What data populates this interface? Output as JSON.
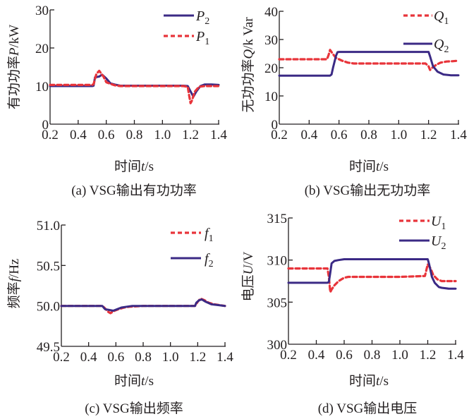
{
  "chart_data": [
    {
      "id": "a",
      "type": "line",
      "caption": "(a) VSG输出有功功率",
      "xlabel_cn": "时间",
      "xlabel_var": "t",
      "xlabel_unit": "/s",
      "ylabel_cn": "有功功率",
      "ylabel_var": "P",
      "ylabel_unit": "/kW",
      "xlim": [
        0.2,
        1.4
      ],
      "ylim": [
        0,
        30
      ],
      "xticks": [
        0.2,
        0.4,
        0.6,
        0.8,
        1.0,
        1.2,
        1.4
      ],
      "xtick_labels": [
        "0.2",
        "0.4",
        "0.6",
        "0.8",
        "1.0",
        "1.2",
        "1.4"
      ],
      "yticks": [
        0,
        10,
        20,
        30
      ],
      "ytick_labels": [
        "0",
        "10",
        "20",
        "30"
      ],
      "legend_position": "top-right",
      "series": [
        {
          "name": "P",
          "sub": "2",
          "style": "solid",
          "color": "#3b2a85",
          "x": [
            0.2,
            0.5,
            0.51,
            0.52,
            0.55,
            0.57,
            0.6,
            0.63,
            0.66,
            0.7,
            0.8,
            1.0,
            1.15,
            1.18,
            1.2,
            1.22,
            1.24,
            1.27,
            1.3,
            1.35,
            1.4
          ],
          "y": [
            10,
            10,
            10.1,
            12.3,
            12.5,
            13.0,
            12.0,
            10.7,
            10.4,
            10.1,
            10.1,
            10.1,
            10.1,
            10.0,
            8.6,
            7.2,
            8.5,
            10.0,
            10.4,
            10.4,
            10.3
          ]
        },
        {
          "name": "P",
          "sub": "1",
          "style": "dashed",
          "color": "#e8343a",
          "x": [
            0.2,
            0.5,
            0.51,
            0.53,
            0.55,
            0.58,
            0.6,
            0.63,
            0.66,
            0.7,
            0.8,
            1.0,
            1.15,
            1.18,
            1.19,
            1.2,
            1.21,
            1.23,
            1.26,
            1.3,
            1.35,
            1.4
          ],
          "y": [
            10.3,
            10.3,
            10.5,
            13.2,
            14.0,
            12.5,
            11.0,
            10.6,
            10.2,
            10.0,
            10.0,
            10.0,
            10.0,
            9.8,
            7.5,
            5.5,
            6.2,
            8.5,
            9.8,
            10.0,
            10.0,
            10.0
          ]
        }
      ]
    },
    {
      "id": "b",
      "type": "line",
      "caption": "(b) VSG输出无功功率",
      "xlabel_cn": "时间",
      "xlabel_var": "t",
      "xlabel_unit": "/s",
      "ylabel_cn": "无功功率",
      "ylabel_var": "Q",
      "ylabel_unit": "/k Var",
      "xlim": [
        0.2,
        1.4
      ],
      "ylim": [
        0,
        40
      ],
      "xticks": [
        0.2,
        0.4,
        0.6,
        0.8,
        1.0,
        1.2,
        1.4
      ],
      "xtick_labels": [
        "0.2",
        "0.4",
        "0.6",
        "0.8",
        "1.0",
        "1.2",
        "1.4"
      ],
      "yticks": [
        0,
        10,
        20,
        30,
        40
      ],
      "ytick_labels": [
        "0",
        "10",
        "20",
        "30",
        "40"
      ],
      "legend_position": "top-right",
      "series": [
        {
          "name": "Q",
          "sub": "1",
          "style": "dashed",
          "color": "#e8343a",
          "x": [
            0.2,
            0.52,
            0.53,
            0.54,
            0.56,
            0.58,
            0.62,
            0.66,
            0.7,
            0.8,
            1.0,
            1.18,
            1.2,
            1.21,
            1.22,
            1.25,
            1.28,
            1.32,
            1.36,
            1.4
          ],
          "y": [
            23,
            23,
            24.5,
            26.3,
            24.8,
            23.5,
            22.5,
            21.8,
            21.5,
            21.5,
            21.5,
            21.5,
            20.5,
            19.2,
            19.8,
            21.0,
            21.8,
            22.2,
            22.3,
            22.5
          ]
        },
        {
          "name": "Q",
          "sub": "2",
          "style": "solid",
          "color": "#3b2a85",
          "x": [
            0.2,
            0.54,
            0.55,
            0.56,
            0.58,
            0.59,
            0.6,
            0.8,
            1.0,
            1.2,
            1.21,
            1.23,
            1.26,
            1.3,
            1.35,
            1.4
          ],
          "y": [
            17.2,
            17.2,
            17.6,
            20.0,
            24.2,
            25.5,
            25.6,
            25.6,
            25.6,
            25.6,
            24.0,
            20.5,
            18.6,
            17.6,
            17.3,
            17.3
          ]
        }
      ]
    },
    {
      "id": "c",
      "type": "line",
      "caption": "(c) VSG输出频率",
      "xlabel_cn": "时间",
      "xlabel_var": "t",
      "xlabel_unit": "/s",
      "ylabel_cn": "频率",
      "ylabel_var": "f",
      "ylabel_unit": "/Hz",
      "xlim": [
        0.2,
        1.4
      ],
      "ylim": [
        49.5,
        51.0
      ],
      "xticks": [
        0.2,
        0.4,
        0.6,
        0.8,
        1.0,
        1.2,
        1.4
      ],
      "xtick_labels": [
        "0.2",
        "0.4",
        "0.6",
        "0.8",
        "1.0",
        "1.2",
        "1.4"
      ],
      "yticks": [
        49.5,
        50.0,
        50.5,
        51.0
      ],
      "ytick_labels": [
        "49.5",
        "50.0",
        "50.5",
        "51.0"
      ],
      "legend_position": "top-right",
      "series": [
        {
          "name": "f",
          "sub": "1",
          "style": "dashed",
          "color": "#e8343a",
          "x": [
            0.2,
            0.5,
            0.52,
            0.54,
            0.56,
            0.59,
            0.62,
            0.66,
            0.7,
            0.8,
            1.0,
            1.18,
            1.2,
            1.22,
            1.25,
            1.28,
            1.32,
            1.36,
            1.4
          ],
          "y": [
            50.0,
            50.0,
            49.97,
            49.93,
            49.91,
            49.94,
            49.96,
            49.98,
            49.99,
            50.0,
            50.0,
            50.0,
            50.05,
            50.09,
            50.07,
            50.04,
            50.02,
            50.01,
            50.0
          ]
        },
        {
          "name": "f",
          "sub": "2",
          "style": "solid",
          "color": "#3b2a85",
          "x": [
            0.2,
            0.5,
            0.52,
            0.55,
            0.58,
            0.61,
            0.64,
            0.68,
            0.72,
            0.8,
            1.0,
            1.18,
            1.19,
            1.21,
            1.23,
            1.26,
            1.3,
            1.35,
            1.4
          ],
          "y": [
            50.0,
            50.0,
            49.96,
            49.95,
            49.94,
            49.96,
            49.98,
            49.99,
            50.0,
            50.0,
            50.0,
            50.0,
            50.04,
            50.07,
            50.08,
            50.05,
            50.02,
            50.01,
            50.0
          ]
        }
      ]
    },
    {
      "id": "d",
      "type": "line",
      "caption": "(d) VSG输出电压",
      "xlabel_cn": "时间",
      "xlabel_var": "t",
      "xlabel_unit": "/s",
      "ylabel_cn": "电压",
      "ylabel_var": "U",
      "ylabel_unit": "/V",
      "xlim": [
        0.2,
        1.4
      ],
      "ylim": [
        300,
        315
      ],
      "xticks": [
        0.2,
        0.4,
        0.6,
        0.8,
        1.0,
        1.2,
        1.4
      ],
      "xtick_labels": [
        "0.2",
        "0.4",
        "0.6",
        "0.8",
        "1.0",
        "1.2",
        "1.4"
      ],
      "yticks": [
        300,
        305,
        310,
        315
      ],
      "ytick_labels": [
        "300",
        "305",
        "310",
        "315"
      ],
      "legend_position": "top-right",
      "series": [
        {
          "name": "U",
          "sub": "1",
          "style": "dashed",
          "color": "#e8343a",
          "x": [
            0.2,
            0.48,
            0.49,
            0.5,
            0.51,
            0.53,
            0.56,
            0.6,
            0.63,
            0.7,
            0.8,
            1.0,
            1.18,
            1.19,
            1.2,
            1.22,
            1.24,
            1.27,
            1.3,
            1.35,
            1.4
          ],
          "y": [
            309.0,
            309.0,
            308.0,
            306.2,
            306.5,
            307.0,
            307.5,
            307.9,
            308.0,
            308.0,
            308.0,
            308.0,
            308.1,
            308.8,
            309.5,
            309.0,
            308.2,
            307.7,
            307.5,
            307.5,
            307.5
          ]
        },
        {
          "name": "U",
          "sub": "2",
          "style": "solid",
          "color": "#3b2a85",
          "x": [
            0.2,
            0.48,
            0.49,
            0.5,
            0.51,
            0.53,
            0.56,
            0.6,
            0.65,
            0.8,
            1.0,
            1.2,
            1.21,
            1.23,
            1.25,
            1.28,
            1.3,
            1.35,
            1.4
          ],
          "y": [
            307.3,
            307.3,
            307.4,
            308.5,
            309.6,
            309.9,
            310.0,
            310.1,
            310.1,
            310.1,
            310.1,
            310.1,
            309.5,
            308.0,
            307.3,
            306.8,
            306.7,
            306.6,
            306.6
          ]
        }
      ]
    }
  ]
}
